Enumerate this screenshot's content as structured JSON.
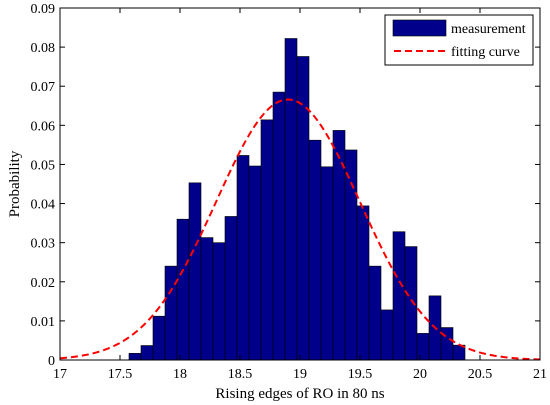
{
  "chart_data": {
    "type": "bar",
    "xlabel": "Rising edges of RO in 80 ns",
    "ylabel": "Probability",
    "xlim": [
      17,
      21
    ],
    "ylim": [
      0,
      0.09
    ],
    "xticks": [
      "17",
      "17.5",
      "18",
      "18.5",
      "19",
      "19.5",
      "20",
      "20.5",
      "21"
    ],
    "yticks": [
      "0",
      "0.01",
      "0.02",
      "0.03",
      "0.04",
      "0.05",
      "0.06",
      "0.07",
      "0.08",
      "0.09"
    ],
    "bar_width": 0.1,
    "bar_color": "#00008b",
    "curve_color": "#ff0000",
    "legend_position": "top-right",
    "series": [
      {
        "name": "measurement",
        "kind": "bar",
        "x": [
          17.625,
          17.725,
          17.825,
          17.925,
          18.025,
          18.125,
          18.225,
          18.325,
          18.425,
          18.525,
          18.625,
          18.725,
          18.825,
          18.925,
          19.025,
          19.125,
          19.225,
          19.325,
          19.425,
          19.525,
          19.625,
          19.725,
          19.825,
          19.925,
          20.025,
          20.125,
          20.225,
          20.325
        ],
        "values": [
          0.0017,
          0.0037,
          0.0112,
          0.024,
          0.036,
          0.0453,
          0.0313,
          0.03,
          0.0367,
          0.0523,
          0.0496,
          0.0614,
          0.0685,
          0.0822,
          0.0776,
          0.0562,
          0.0494,
          0.0587,
          0.0537,
          0.0394,
          0.024,
          0.0128,
          0.0328,
          0.029,
          0.0068,
          0.0164,
          0.0083,
          0.0038
        ]
      },
      {
        "name": "fitting curve",
        "kind": "line",
        "style": "dashed",
        "mean": 18.9,
        "std": 0.6,
        "peak": 0.0666
      }
    ]
  }
}
